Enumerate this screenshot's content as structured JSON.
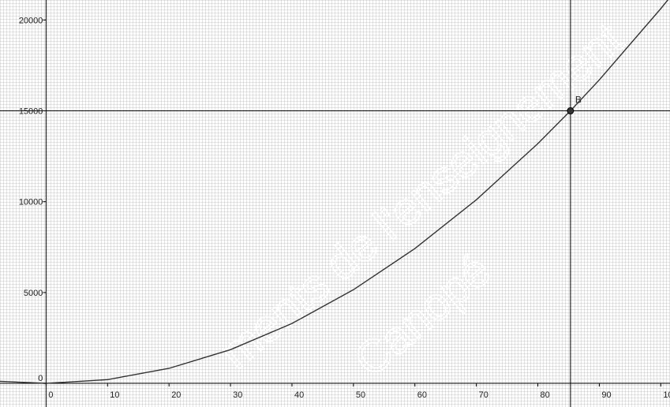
{
  "chart_data": {
    "type": "line",
    "title": "",
    "xlabel": "",
    "ylabel": "",
    "xlim": [
      -7.5,
      101.5
    ],
    "ylim": [
      -1300,
      21100
    ],
    "x_ticks": [
      0,
      10,
      20,
      30,
      40,
      50,
      60,
      70,
      80,
      90,
      100
    ],
    "x_tick_labels": [
      "0",
      "10",
      "20",
      "30",
      "40",
      "50",
      "60",
      "70",
      "80",
      "90",
      "100"
    ],
    "y_ticks": [
      0,
      5000,
      10000,
      15000,
      20000
    ],
    "y_tick_labels": [
      "0",
      "5000",
      "10000",
      "15000",
      "20000"
    ],
    "grid": true,
    "curve": {
      "x": [
        -7.5,
        0,
        10,
        20,
        30,
        40,
        50,
        60,
        70,
        80,
        85.3,
        90,
        100,
        101.5
      ],
      "y": [
        116,
        0,
        206,
        825,
        1856,
        3299,
        5155,
        7423,
        10104,
        13197,
        15000,
        16703,
        20622,
        21246
      ]
    },
    "reference_lines": {
      "horizontal_y": 15000,
      "vertical_x": 85.3
    },
    "points": [
      {
        "label": "B",
        "x": 85.3,
        "y": 15000
      }
    ]
  },
  "watermark": {
    "line1": "ments de l'enseignement",
    "line2": "Canopé"
  }
}
